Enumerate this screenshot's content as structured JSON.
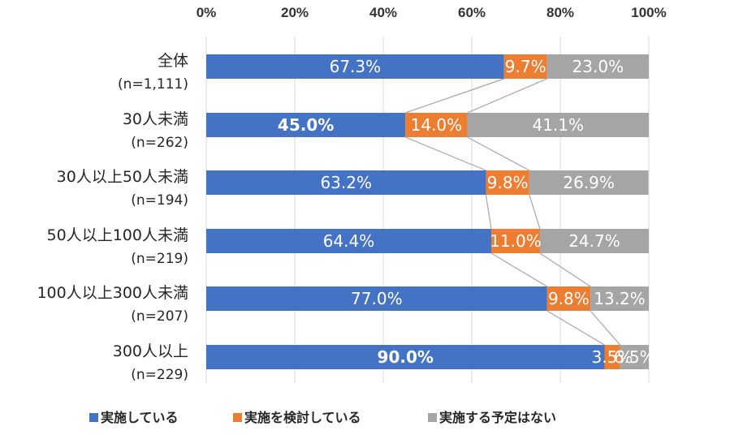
{
  "chart_data": {
    "type": "bar",
    "orientation": "horizontal",
    "stacked": "100%",
    "x_ticks": [
      "0%",
      "20%",
      "40%",
      "60%",
      "80%",
      "100%"
    ],
    "xlim": [
      0,
      100
    ],
    "categories": [
      {
        "label": "全体",
        "sublabel": "(n=1,111)"
      },
      {
        "label": "30人未満",
        "sublabel": "(n=262)"
      },
      {
        "label": "30人以上50人未満",
        "sublabel": "(n=194)"
      },
      {
        "label": "50人以上100人未満",
        "sublabel": "(n=219)"
      },
      {
        "label": "100人以上300人未満",
        "sublabel": "(n=207)"
      },
      {
        "label": "300人以上",
        "sublabel": "(n=229)"
      }
    ],
    "series": [
      {
        "name": "実施している",
        "color": "#4472c4",
        "values": [
          67.3,
          45.0,
          63.2,
          64.4,
          77.0,
          90.0
        ],
        "labels": [
          "67.3%",
          "45.0%",
          "63.2%",
          "64.4%",
          "77.0%",
          "90.0%"
        ],
        "bold": [
          false,
          true,
          false,
          false,
          false,
          true
        ]
      },
      {
        "name": "実施を検討している",
        "color": "#ed7d31",
        "values": [
          9.7,
          14.0,
          9.8,
          11.0,
          9.8,
          3.5
        ],
        "labels": [
          "9.7%",
          "14.0%",
          "9.8%",
          "11.0%",
          "9.8%",
          "3.5%"
        ],
        "bold": [
          false,
          false,
          false,
          false,
          false,
          false
        ]
      },
      {
        "name": "実施する予定はない",
        "color": "#a5a5a5",
        "values": [
          23.0,
          41.1,
          26.9,
          24.7,
          13.2,
          6.5
        ],
        "labels": [
          "23.0%",
          "41.1%",
          "26.9%",
          "24.7%",
          "13.2%",
          "6.5%"
        ],
        "bold": [
          false,
          false,
          false,
          false,
          false,
          false
        ]
      }
    ],
    "series_lines": true,
    "legend": "bottom",
    "grid": true
  }
}
